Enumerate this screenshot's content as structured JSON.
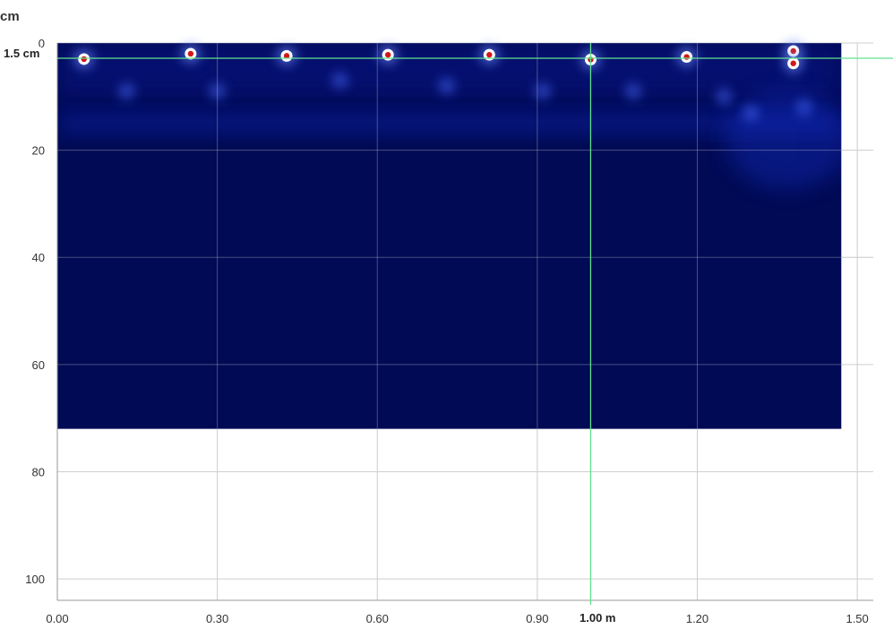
{
  "units": {
    "depth": "cm"
  },
  "axes": {
    "x_ticks": [
      "0.00",
      "0.30",
      "0.60",
      "0.90",
      "1.20",
      "1.50"
    ],
    "y_ticks": [
      "0",
      "20",
      "40",
      "60",
      "80",
      "100"
    ],
    "x_range_m": [
      0,
      1.53
    ],
    "y_range_cm": [
      0,
      104
    ],
    "scan_extent": {
      "x_end_m": 1.47,
      "depth_end_cm": 72
    }
  },
  "cursor": {
    "depth_label": "1.5 cm",
    "position_label": "1.00 m",
    "depth_cm": 1.5,
    "position_m": 1.0
  },
  "detections": [
    {
      "x_m": 0.05,
      "depth_cm": 3.0
    },
    {
      "x_m": 0.25,
      "depth_cm": 2.0
    },
    {
      "x_m": 0.43,
      "depth_cm": 2.4
    },
    {
      "x_m": 0.62,
      "depth_cm": 2.2
    },
    {
      "x_m": 0.81,
      "depth_cm": 2.2
    },
    {
      "x_m": 1.0,
      "depth_cm": 3.1
    },
    {
      "x_m": 1.18,
      "depth_cm": 2.6
    },
    {
      "x_m": 1.38,
      "depth_cm": 1.5
    },
    {
      "x_m": 1.38,
      "depth_cm": 3.8
    }
  ],
  "colors": {
    "background": "#000a55",
    "grid": "#cfcfcf",
    "cursor": "#5fe38c",
    "hotspot_core": "#d4161b",
    "hotspot_ring": "#ffffff"
  }
}
